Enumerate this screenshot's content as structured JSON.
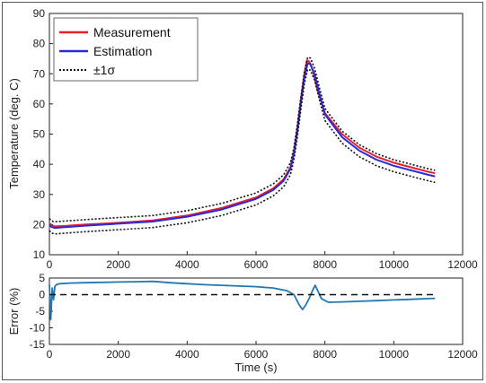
{
  "chart_data": [
    {
      "type": "line",
      "xlabel": "",
      "ylabel": "Temperature (deg. C)",
      "xlim": [
        0,
        12000
      ],
      "ylim": [
        10,
        90
      ],
      "xticks": [
        0,
        2000,
        4000,
        6000,
        8000,
        10000,
        12000
      ],
      "yticks": [
        10,
        20,
        30,
        40,
        50,
        60,
        70,
        80,
        90
      ],
      "legend_position": "top-left",
      "grid": false,
      "series": [
        {
          "name": "Measurement",
          "color": "#e8202a",
          "style": "solid",
          "x": [
            0,
            60,
            150,
            500,
            1000,
            2000,
            3000,
            4000,
            5000,
            6000,
            6500,
            6800,
            7000,
            7100,
            7200,
            7300,
            7400,
            7480,
            7550,
            7650,
            7800,
            8000,
            8500,
            9000,
            9500,
            10000,
            10500,
            11000,
            11200
          ],
          "y": [
            20.5,
            19.8,
            19.4,
            19.6,
            20.0,
            20.6,
            21.4,
            23.0,
            25.5,
            29.0,
            32.0,
            35.0,
            39.0,
            44.0,
            52.0,
            61.0,
            69.5,
            74.5,
            74.0,
            71.0,
            64.0,
            57.0,
            50.0,
            45.5,
            42.5,
            40.5,
            39.0,
            37.5,
            37.0
          ]
        },
        {
          "name": "Estimation",
          "color": "#2a2adb",
          "style": "solid",
          "x": [
            0,
            60,
            150,
            500,
            1000,
            2000,
            3000,
            4000,
            5000,
            6000,
            6500,
            6800,
            7000,
            7100,
            7200,
            7300,
            7400,
            7500,
            7580,
            7700,
            7850,
            8000,
            8500,
            9000,
            9500,
            10000,
            10500,
            11000,
            11200
          ],
          "y": [
            20.0,
            19.2,
            18.9,
            19.2,
            19.6,
            20.3,
            21.0,
            22.6,
            25.0,
            28.5,
            31.5,
            34.5,
            38.5,
            43.5,
            51.0,
            60.0,
            68.5,
            73.5,
            73.2,
            69.8,
            63.0,
            56.5,
            49.0,
            44.5,
            41.5,
            39.5,
            38.0,
            36.5,
            36.0
          ]
        },
        {
          "name": "±1σ",
          "color": "#111111",
          "style": "dotted",
          "x": [
            0,
            60,
            150,
            500,
            1000,
            2000,
            3000,
            4000,
            5000,
            6000,
            6500,
            6800,
            7000,
            7100,
            7200,
            7300,
            7400,
            7500,
            7580,
            7700,
            7850,
            8000,
            8500,
            9000,
            9500,
            10000,
            10500,
            11000,
            11200
          ],
          "y": [
            22.0,
            21.2,
            20.9,
            21.2,
            21.6,
            22.3,
            23.0,
            24.6,
            27.0,
            30.5,
            33.5,
            36.5,
            40.5,
            45.5,
            53.0,
            62.0,
            70.5,
            75.5,
            75.2,
            71.8,
            65.0,
            58.5,
            51.0,
            46.5,
            43.5,
            41.5,
            40.0,
            38.5,
            38.0
          ]
        },
        {
          "name": "",
          "color": "#111111",
          "style": "dotted",
          "x": [
            0,
            60,
            150,
            500,
            1000,
            2000,
            3000,
            4000,
            5000,
            6000,
            6500,
            6800,
            7000,
            7100,
            7200,
            7300,
            7400,
            7500,
            7580,
            7700,
            7850,
            8000,
            8500,
            9000,
            9500,
            10000,
            10500,
            11000,
            11200
          ],
          "y": [
            18.0,
            17.2,
            16.9,
            17.2,
            17.6,
            18.3,
            19.0,
            20.6,
            23.0,
            26.5,
            29.5,
            32.5,
            36.5,
            41.5,
            49.0,
            58.0,
            66.5,
            71.5,
            71.2,
            67.8,
            61.0,
            54.5,
            47.0,
            42.5,
            39.5,
            37.5,
            36.0,
            34.5,
            34.0
          ]
        }
      ]
    },
    {
      "type": "line",
      "xlabel": "Time (s)",
      "ylabel": "Error (%)",
      "xlim": [
        0,
        12000
      ],
      "ylim": [
        -15,
        5
      ],
      "xticks": [
        0,
        2000,
        4000,
        6000,
        8000,
        10000,
        12000
      ],
      "yticks": [
        -15,
        -10,
        -5,
        0,
        5
      ],
      "grid": false,
      "series": [
        {
          "name": "",
          "color": "#1f77b4",
          "style": "solid",
          "x": [
            0,
            40,
            80,
            120,
            160,
            200,
            300,
            600,
            1000,
            1500,
            2000,
            2500,
            3000,
            3500,
            4000,
            4500,
            5000,
            5500,
            6000,
            6500,
            6900,
            7100,
            7250,
            7350,
            7450,
            7550,
            7650,
            7720,
            7800,
            7900,
            8100,
            8500,
            9000,
            9500,
            10000,
            10500,
            11000,
            11200
          ],
          "y": [
            3.0,
            -7.5,
            2.0,
            -1.5,
            2.5,
            3.0,
            3.3,
            3.5,
            3.6,
            3.7,
            3.8,
            3.9,
            4.0,
            3.6,
            3.3,
            3.0,
            2.8,
            2.6,
            2.4,
            2.0,
            1.2,
            0.0,
            -3.0,
            -4.5,
            -3.0,
            -1.0,
            1.5,
            2.8,
            1.0,
            -1.2,
            -2.3,
            -2.2,
            -2.0,
            -1.8,
            -1.6,
            -1.4,
            -1.2,
            -1.1
          ]
        },
        {
          "name": "",
          "color": "#111111",
          "style": "dashed",
          "x": [
            0,
            11200
          ],
          "y": [
            0,
            0
          ]
        }
      ]
    }
  ],
  "ticklabels": {
    "top_x": [
      "0",
      "2000",
      "4000",
      "6000",
      "8000",
      "10000",
      "12000"
    ],
    "top_y": [
      "10",
      "20",
      "30",
      "40",
      "50",
      "60",
      "70",
      "80",
      "90"
    ],
    "bot_x": [
      "0",
      "2000",
      "4000",
      "6000",
      "8000",
      "10000",
      "12000"
    ],
    "bot_y": [
      "-15",
      "-10",
      "-5",
      "0",
      "5"
    ]
  }
}
